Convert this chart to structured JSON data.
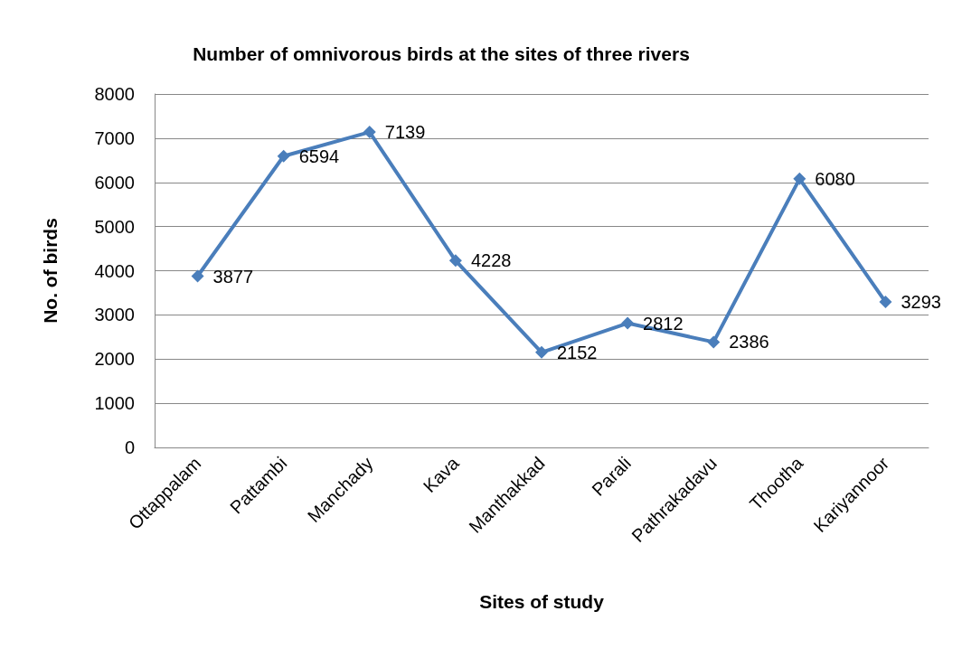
{
  "chart_data": {
    "type": "line",
    "title": "Number of omnivorous birds at the sites of three rivers",
    "xlabel": "Sites of study",
    "ylabel": "No. of birds",
    "categories": [
      "Ottappalam",
      "Pattambi",
      "Manchady",
      "Kava",
      "Manthakkad",
      "Parali",
      "Pathrakadavu",
      "Thootha",
      "Kariyannoor"
    ],
    "series": [
      {
        "color": "#4a7ebb",
        "values": [
          3877,
          6594,
          7139,
          4228,
          2152,
          2812,
          2386,
          6080,
          3293
        ]
      }
    ],
    "ylim": [
      0,
      8000
    ],
    "yticks": [
      0,
      1000,
      2000,
      3000,
      4000,
      5000,
      6000,
      7000,
      8000
    ],
    "grid": "y",
    "marker": "diamond",
    "line_style": "solid",
    "data_labels": true
  }
}
